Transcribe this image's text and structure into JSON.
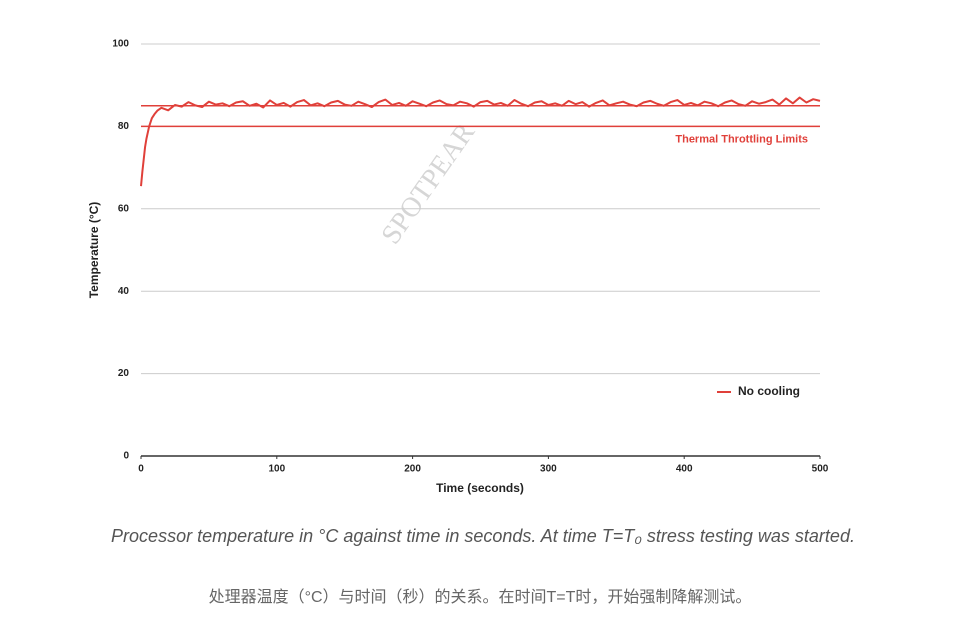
{
  "chart_data": {
    "type": "line",
    "x_label": "Time (seconds)",
    "y_label": "Temperature (°C)",
    "x": [
      0,
      1,
      2,
      3,
      4,
      5,
      6,
      8,
      10,
      12,
      15,
      20,
      25,
      30,
      35,
      40,
      45,
      50,
      55,
      60,
      65,
      70,
      75,
      80,
      85,
      90,
      95,
      100,
      105,
      110,
      115,
      120,
      125,
      130,
      135,
      140,
      145,
      150,
      155,
      160,
      165,
      170,
      175,
      180,
      185,
      190,
      195,
      200,
      205,
      210,
      215,
      220,
      225,
      230,
      235,
      240,
      245,
      250,
      255,
      260,
      265,
      270,
      275,
      280,
      285,
      290,
      295,
      300,
      305,
      310,
      315,
      320,
      325,
      330,
      335,
      340,
      345,
      350,
      355,
      360,
      365,
      370,
      375,
      380,
      385,
      390,
      395,
      400,
      405,
      410,
      415,
      420,
      425,
      430,
      435,
      440,
      445,
      450,
      455,
      460,
      465,
      470,
      475,
      480,
      485,
      490,
      495,
      500
    ],
    "series": [
      {
        "name": "No cooling",
        "color": "#e0403a",
        "values": [
          65.5,
          69,
          72,
          75,
          77,
          78.5,
          80,
          82,
          83,
          83.8,
          84.5,
          83.9,
          85.2,
          84.8,
          85.9,
          85.1,
          84.7,
          86.0,
          85.3,
          85.6,
          84.9,
          85.8,
          86.1,
          85.0,
          85.5,
          84.6,
          86.3,
          85.2,
          85.7,
          84.8,
          85.9,
          86.4,
          85.1,
          85.6,
          84.9,
          85.8,
          86.2,
          85.3,
          85.0,
          86.0,
          85.4,
          84.7,
          85.9,
          86.5,
          85.2,
          85.7,
          85.0,
          86.1,
          85.5,
          84.9,
          85.8,
          86.3,
          85.4,
          85.1,
          86.0,
          85.6,
          84.8,
          85.9,
          86.2,
          85.3,
          85.7,
          85.0,
          86.4,
          85.5,
          84.9,
          85.8,
          86.1,
          85.2,
          85.6,
          85.0,
          86.2,
          85.4,
          85.9,
          84.8,
          85.7,
          86.3,
          85.1,
          85.6,
          86.0,
          85.3,
          84.9,
          85.8,
          86.2,
          85.5,
          85.0,
          85.9,
          86.4,
          85.2,
          85.7,
          85.1,
          86.0,
          85.6,
          84.9,
          85.8,
          86.3,
          85.4,
          85.0,
          86.1,
          85.5,
          85.9,
          86.5,
          85.3,
          86.8,
          85.6,
          87.0,
          85.8,
          86.6,
          86.2
        ]
      }
    ],
    "annotation": {
      "text": "Thermal Throttling Limits",
      "values": [
        80,
        85
      ],
      "color": "#e0403a"
    },
    "xlim": [
      0,
      500
    ],
    "xticks": [
      0,
      100,
      200,
      300,
      400,
      500
    ],
    "ylim": [
      0,
      100
    ],
    "yticks": [
      0,
      20,
      40,
      60,
      80,
      100
    ],
    "grid": true,
    "legend": "lower right"
  },
  "watermark": "SPOTPEAR",
  "caption": "Processor temperature in °C against time in seconds. At time T=T₀ stress testing was started.",
  "caption_zh": "处理器温度（°C）与时间（秒）的关系。在时间T=T时，开始强制降解测试。"
}
